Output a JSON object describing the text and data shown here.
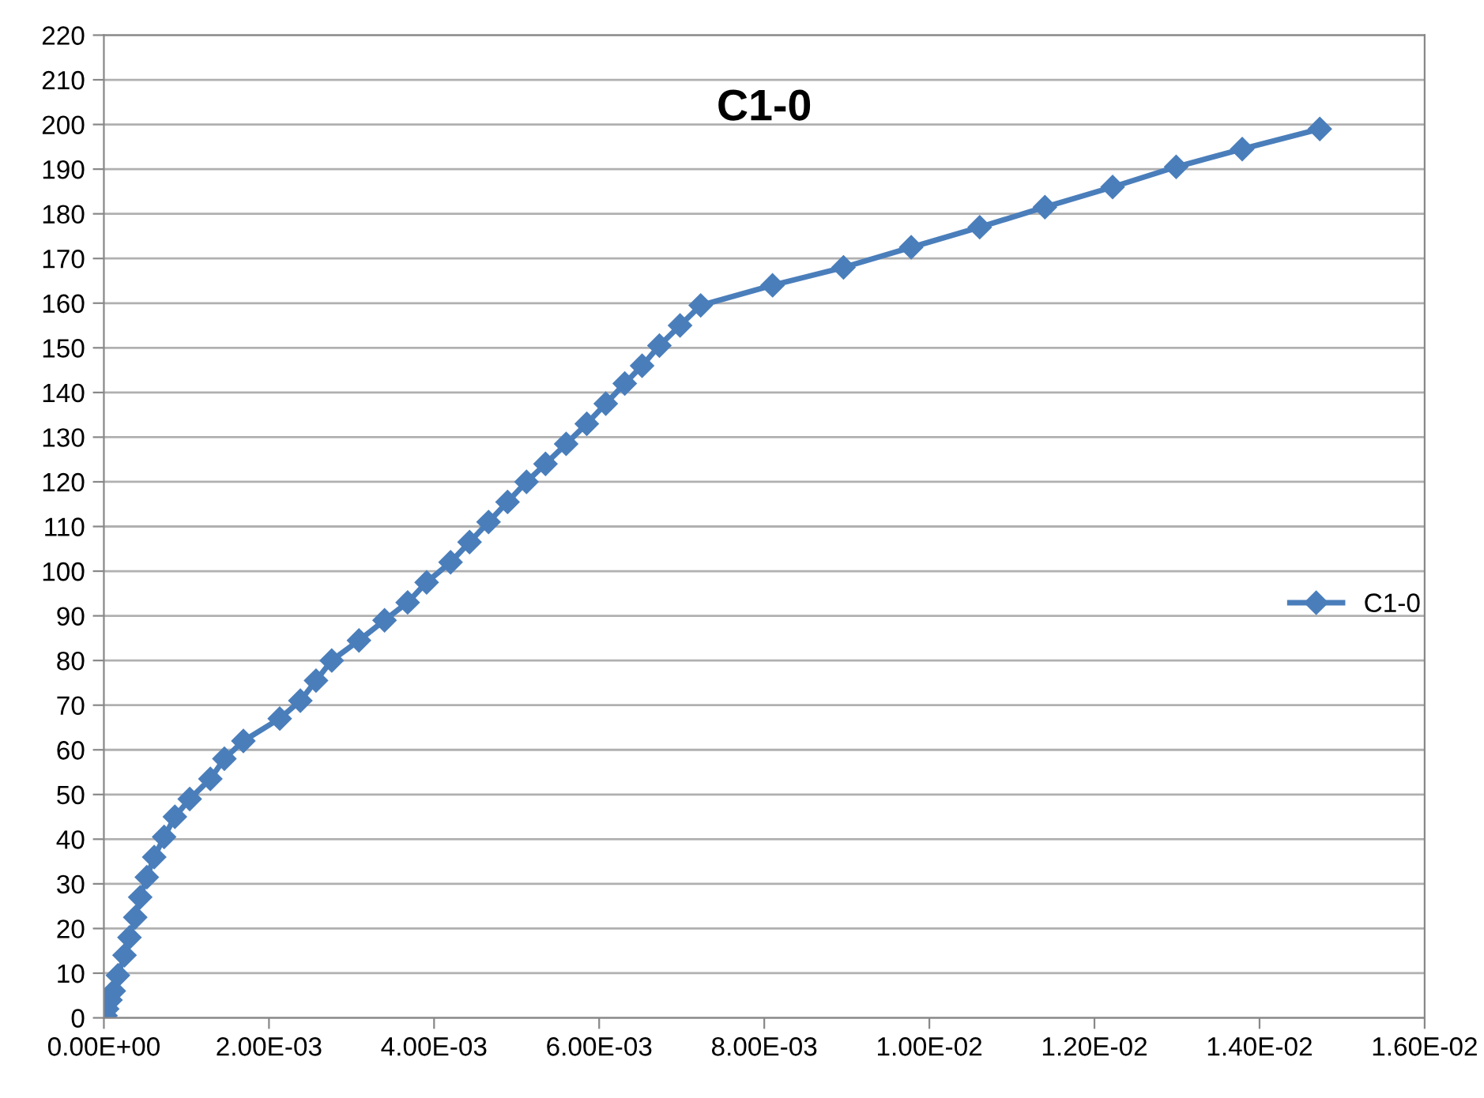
{
  "chart_data": {
    "type": "line",
    "title": "C1-0",
    "marker": "diamond",
    "grid": "y",
    "legend": "right",
    "xlim": [
      0,
      0.016
    ],
    "ylim": [
      0,
      220
    ],
    "xticks": [
      {
        "value": 0,
        "label": "0.00E+00"
      },
      {
        "value": 0.002,
        "label": "2.00E-03"
      },
      {
        "value": 0.004,
        "label": "4.00E-03"
      },
      {
        "value": 0.006,
        "label": "6.00E-03"
      },
      {
        "value": 0.008,
        "label": "8.00E-03"
      },
      {
        "value": 0.01,
        "label": "1.00E-02"
      },
      {
        "value": 0.012,
        "label": "1.20E-02"
      },
      {
        "value": 0.014,
        "label": "1.40E-02"
      },
      {
        "value": 0.016,
        "label": "1.60E-02"
      }
    ],
    "yticks": [
      0,
      10,
      20,
      30,
      40,
      50,
      60,
      70,
      80,
      90,
      100,
      110,
      120,
      130,
      140,
      150,
      160,
      170,
      180,
      190,
      200,
      210,
      220
    ],
    "series": [
      {
        "name": "C1-0",
        "color": "#4a7ebb",
        "x": [
          2e-05,
          4e-05,
          8e-05,
          0.00012,
          0.00017,
          0.00025,
          0.00031,
          0.00038,
          0.00044,
          0.00052,
          0.00061,
          0.00073,
          0.00086,
          0.00104,
          0.00129,
          0.00146,
          0.00169,
          0.00213,
          0.00238,
          0.00257,
          0.00276,
          0.00309,
          0.0034,
          0.00368,
          0.00391,
          0.0042,
          0.00443,
          0.00466,
          0.00489,
          0.00512,
          0.00535,
          0.0056,
          0.00585,
          0.00608,
          0.00631,
          0.00652,
          0.00673,
          0.00698,
          0.00723,
          0.0081,
          0.00896,
          0.00978,
          0.01061,
          0.0114,
          0.01222,
          0.01299,
          0.01379,
          0.01473
        ],
        "values": [
          0.5,
          2,
          4,
          6,
          9.5,
          14,
          18,
          22.5,
          27,
          31.5,
          36,
          40.5,
          45,
          49,
          53.5,
          58,
          62,
          67,
          71,
          75.5,
          80,
          84.5,
          89,
          93,
          97.5,
          102,
          106.5,
          111,
          115.5,
          120,
          124,
          128.5,
          133,
          137.5,
          142,
          146,
          150.5,
          155,
          159.5,
          164,
          168,
          172.5,
          177,
          181.5,
          186,
          190.5,
          194.5,
          199
        ]
      }
    ]
  }
}
